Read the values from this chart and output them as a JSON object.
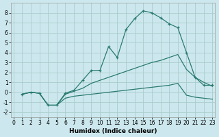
{
  "xlabel": "Humidex (Indice chaleur)",
  "bg_color": "#cce8ee",
  "grid_color": "#aacccc",
  "line_color": "#2a7a70",
  "line1_x": [
    1,
    2,
    3,
    4,
    5,
    6,
    7,
    8,
    9,
    10,
    11,
    12,
    13,
    14,
    15,
    16,
    17,
    18,
    19,
    20,
    21,
    22,
    23
  ],
  "line1_y": [
    -0.2,
    0.0,
    -0.1,
    -1.3,
    -1.3,
    -0.1,
    0.2,
    1.2,
    2.2,
    2.2,
    4.6,
    3.5,
    6.3,
    7.4,
    8.2,
    8.0,
    7.5,
    6.9,
    6.5,
    4.0,
    1.5,
    0.7,
    0.7
  ],
  "line2_x": [
    1,
    2,
    3,
    4,
    5,
    6,
    7,
    8,
    9,
    10,
    11,
    12,
    13,
    14,
    15,
    16,
    17,
    18,
    19,
    20,
    21,
    22,
    23
  ],
  "line2_y": [
    -0.2,
    0.0,
    -0.1,
    -1.3,
    -1.3,
    -0.2,
    0.1,
    0.4,
    0.9,
    1.2,
    1.5,
    1.8,
    2.1,
    2.4,
    2.7,
    3.0,
    3.2,
    3.5,
    3.8,
    2.3,
    1.5,
    1.0,
    0.6
  ],
  "line3_x": [
    1,
    2,
    3,
    4,
    5,
    6,
    7,
    8,
    9,
    10,
    11,
    12,
    13,
    14,
    15,
    16,
    17,
    18,
    19,
    20,
    21,
    22,
    23
  ],
  "line3_y": [
    -0.2,
    0.0,
    -0.1,
    -1.3,
    -1.3,
    -0.6,
    -0.4,
    -0.3,
    -0.2,
    -0.1,
    0.0,
    0.1,
    0.2,
    0.3,
    0.4,
    0.5,
    0.6,
    0.7,
    0.9,
    -0.3,
    -0.5,
    -0.6,
    -0.7
  ],
  "xlim": [
    -0.3,
    23.3
  ],
  "ylim": [
    -2.5,
    9.0
  ],
  "xticks": [
    0,
    1,
    2,
    3,
    4,
    5,
    6,
    7,
    8,
    9,
    10,
    11,
    12,
    13,
    14,
    15,
    16,
    17,
    18,
    19,
    20,
    21,
    22,
    23
  ],
  "yticks": [
    -2,
    -1,
    0,
    1,
    2,
    3,
    4,
    5,
    6,
    7,
    8
  ],
  "tick_fontsize": 5.5,
  "xlabel_fontsize": 6.5
}
